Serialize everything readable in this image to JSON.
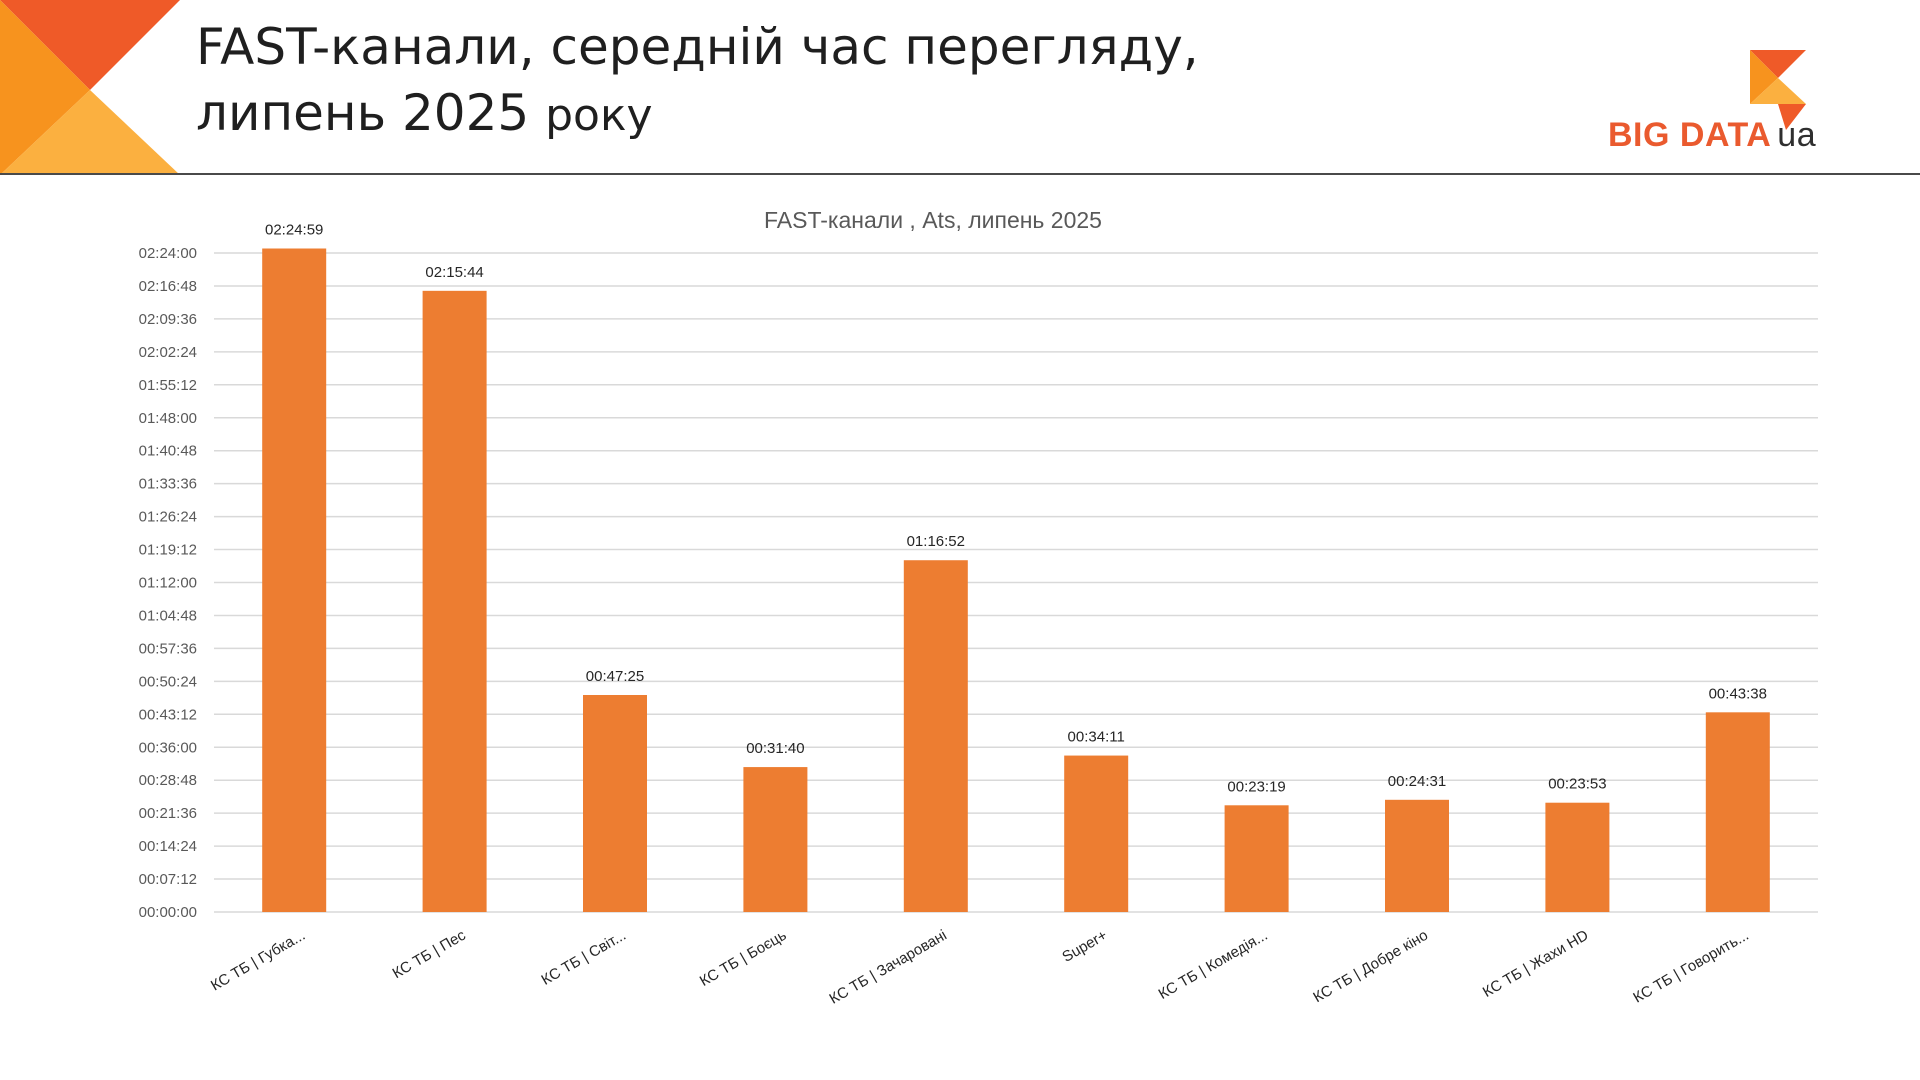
{
  "slide": {
    "title_line1": "FAST-канали, середній час перегляду,",
    "title_line2a": "липень 2025",
    "title_line2b": "року",
    "logo_text": "BIG DATA",
    "logo_suffix": "ua"
  },
  "colors": {
    "bar": "#ed7d31",
    "accent_dark": "#ef5a28",
    "accent_mid": "#f7931e",
    "accent_light": "#fbb040",
    "grid": "#d9d9d9"
  },
  "chart_data": {
    "type": "bar",
    "title": "FAST-канали , Ats, липень 2025",
    "categories": [
      "КС ТБ | Губка...",
      "КС ТБ | Пес",
      "КС ТБ | Світ...",
      "КС ТБ | Боєць",
      "КС ТБ | Зачаровані",
      "Super+",
      "КС ТБ | Комедія...",
      "КС ТБ | Добре кіно",
      "КС ТБ | Жахи HD",
      "КС ТБ | Говорить..."
    ],
    "values": [
      8699,
      8144,
      2845,
      1900,
      4612,
      2051,
      1399,
      1471,
      1433,
      2618
    ],
    "data_labels": [
      "02:24:59",
      "02:15:44",
      "00:47:25",
      "00:31:40",
      "01:16:52",
      "00:34:11",
      "00:23:19",
      "00:24:31",
      "00:23:53",
      "00:43:38"
    ],
    "y_ticks": [
      "00:00:00",
      "00:07:12",
      "00:14:24",
      "00:21:36",
      "00:28:48",
      "00:36:00",
      "00:43:12",
      "00:50:24",
      "00:57:36",
      "01:04:48",
      "01:12:00",
      "01:19:12",
      "01:26:24",
      "01:33:36",
      "01:40:48",
      "01:48:00",
      "01:55:12",
      "02:02:24",
      "02:09:36",
      "02:16:48",
      "02:24:00"
    ],
    "y_unit": "seconds",
    "ylim": [
      0,
      8640
    ],
    "grid": true,
    "legend": "none",
    "xlabel": "",
    "ylabel": ""
  }
}
